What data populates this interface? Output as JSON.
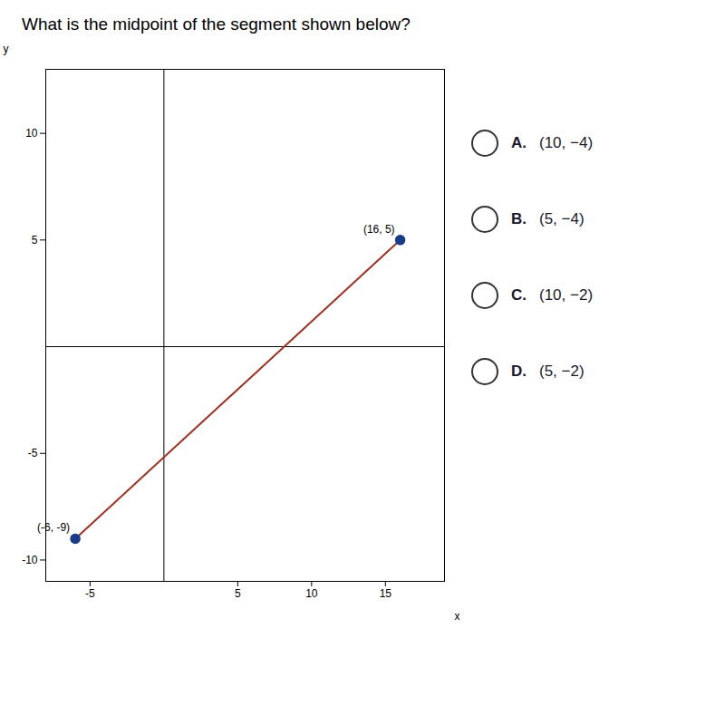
{
  "chart_data": {
    "type": "line",
    "title": "What is the midpoint of the segment shown below?",
    "xlabel": "x",
    "ylabel": "y",
    "x": [
      -6,
      16
    ],
    "series": [
      {
        "type": "line",
        "color": "#a03020",
        "values": [
          -9,
          5
        ]
      },
      {
        "type": "scatter",
        "color": "#1a3a8a",
        "marker": "circle",
        "values": [
          -9,
          5
        ]
      }
    ],
    "data_labels": true,
    "value_labels": [
      "(-6, -9)",
      "(16, 5)"
    ],
    "xlim": [
      -8,
      19
    ],
    "ylim": [
      -11,
      13
    ],
    "xticks": [
      -5,
      5,
      10,
      15
    ],
    "yticks": [
      -10,
      -5,
      5,
      10
    ],
    "grid": false,
    "annotations": [
      {
        "label": "A.",
        "text": "(10, −4)"
      },
      {
        "label": "B.",
        "text": "(5, −4)"
      },
      {
        "label": "C.",
        "text": "(10, −2)"
      },
      {
        "label": "D.",
        "text": "(5, −2)"
      }
    ]
  }
}
